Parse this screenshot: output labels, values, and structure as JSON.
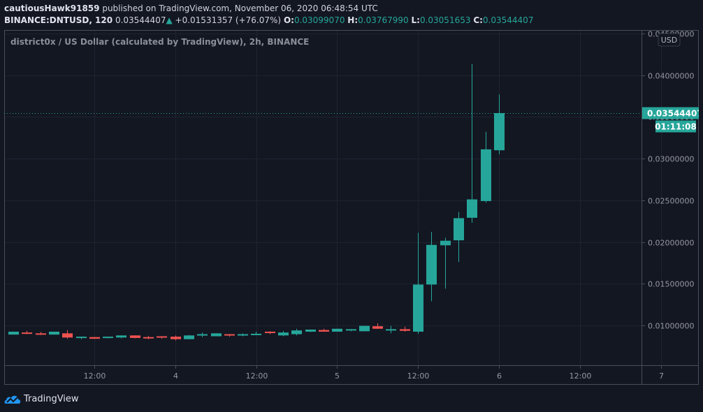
{
  "header": {
    "author": "cautiousHawk91859",
    "published_text": "published on TradingView.com, November 06, 2020 06:48:54 UTC",
    "symbol": "BINANCE:DNTUSD, 120",
    "last_price": "0.03544407",
    "change_arrow": "▲",
    "change": "+0.01531357 (+76.07%)",
    "o_label": "O:",
    "o_value": "0.03099070",
    "h_label": "H:",
    "h_value": "0.03767990",
    "l_label": "L:",
    "l_value": "0.03051653",
    "c_label": "C:",
    "c_value": "0.03544407"
  },
  "chart": {
    "legend": "district0x / US Dollar (calculated by TradingView), 2h, BINANCE",
    "currency_button": "USD",
    "price_label": "0.03544407",
    "countdown_label": "01:11:08",
    "up_color": "#26a69a",
    "down_color": "#ef5350"
  },
  "footer": {
    "brand": "TradingView"
  },
  "chart_data": {
    "type": "candlestick",
    "title": "district0x / US Dollar (calculated by TradingView), 2h, BINANCE",
    "xlabel": "",
    "ylabel": "USD",
    "ylim": [
      0.0052,
      0.0455
    ],
    "grid": true,
    "y_ticks": [
      "0.01000000",
      "0.01500000",
      "0.02000000",
      "0.02500000",
      "0.03000000",
      "0.03500000",
      "0.04000000",
      "0.04500000"
    ],
    "y_tick_values": [
      0.01,
      0.015,
      0.02,
      0.025,
      0.03,
      0.035,
      0.04,
      0.045
    ],
    "x_ticks": [
      "12:00",
      "4",
      "12:00",
      "5",
      "12:00",
      "6",
      "12:00",
      "7"
    ],
    "x_tick_index": [
      3,
      9,
      15,
      21,
      27,
      33,
      39,
      45
    ],
    "candles": [
      {
        "o": 0.0089,
        "h": 0.00925,
        "l": 0.0089,
        "c": 0.00925
      },
      {
        "o": 0.00915,
        "h": 0.00935,
        "l": 0.00895,
        "c": 0.0091
      },
      {
        "o": 0.00905,
        "h": 0.0092,
        "l": 0.00885,
        "c": 0.00895
      },
      {
        "o": 0.0089,
        "h": 0.00925,
        "l": 0.0089,
        "c": 0.00925
      },
      {
        "o": 0.00905,
        "h": 0.00945,
        "l": 0.0084,
        "c": 0.00855
      },
      {
        "o": 0.0086,
        "h": 0.00865,
        "l": 0.00835,
        "c": 0.00865
      },
      {
        "o": 0.0086,
        "h": 0.0086,
        "l": 0.0084,
        "c": 0.0084
      },
      {
        "o": 0.0086,
        "h": 0.00865,
        "l": 0.00845,
        "c": 0.00865
      },
      {
        "o": 0.00855,
        "h": 0.0088,
        "l": 0.00845,
        "c": 0.0088
      },
      {
        "o": 0.0088,
        "h": 0.0088,
        "l": 0.00845,
        "c": 0.0085
      },
      {
        "o": 0.0086,
        "h": 0.00875,
        "l": 0.00835,
        "c": 0.00845
      },
      {
        "o": 0.0087,
        "h": 0.0087,
        "l": 0.0084,
        "c": 0.00855
      },
      {
        "o": 0.00865,
        "h": 0.0088,
        "l": 0.0082,
        "c": 0.00835
      },
      {
        "o": 0.00835,
        "h": 0.00885,
        "l": 0.00835,
        "c": 0.0088
      },
      {
        "o": 0.0088,
        "h": 0.00915,
        "l": 0.0086,
        "c": 0.00895
      },
      {
        "o": 0.0087,
        "h": 0.00905,
        "l": 0.0087,
        "c": 0.00905
      },
      {
        "o": 0.00895,
        "h": 0.00895,
        "l": 0.00865,
        "c": 0.0088
      },
      {
        "o": 0.0088,
        "h": 0.00905,
        "l": 0.0087,
        "c": 0.00895
      },
      {
        "o": 0.00895,
        "h": 0.00925,
        "l": 0.00895,
        "c": 0.009
      },
      {
        "o": 0.00925,
        "h": 0.0093,
        "l": 0.00895,
        "c": 0.0091
      },
      {
        "o": 0.0088,
        "h": 0.00935,
        "l": 0.0087,
        "c": 0.00915
      },
      {
        "o": 0.00895,
        "h": 0.0096,
        "l": 0.0088,
        "c": 0.0094
      },
      {
        "o": 0.00925,
        "h": 0.0095,
        "l": 0.0092,
        "c": 0.0095
      },
      {
        "o": 0.00945,
        "h": 0.0096,
        "l": 0.0093,
        "c": 0.00925
      },
      {
        "o": 0.00925,
        "h": 0.0096,
        "l": 0.00925,
        "c": 0.0096
      },
      {
        "o": 0.00945,
        "h": 0.00955,
        "l": 0.0093,
        "c": 0.00955
      },
      {
        "o": 0.0093,
        "h": 0.00995,
        "l": 0.0093,
        "c": 0.00995
      },
      {
        "o": 0.0099,
        "h": 0.01025,
        "l": 0.0096,
        "c": 0.0096
      },
      {
        "o": 0.00955,
        "h": 0.00995,
        "l": 0.00905,
        "c": 0.00955
      },
      {
        "o": 0.00955,
        "h": 0.00985,
        "l": 0.00925,
        "c": 0.00935
      },
      {
        "o": 0.00925,
        "h": 0.0211,
        "l": 0.009,
        "c": 0.0149
      },
      {
        "o": 0.0149,
        "h": 0.0212,
        "l": 0.0129,
        "c": 0.01965
      },
      {
        "o": 0.0196,
        "h": 0.0205,
        "l": 0.0144,
        "c": 0.02015
      },
      {
        "o": 0.0202,
        "h": 0.0236,
        "l": 0.0176,
        "c": 0.02285
      },
      {
        "o": 0.0229,
        "h": 0.0413,
        "l": 0.0223,
        "c": 0.0251
      },
      {
        "o": 0.0249,
        "h": 0.0332,
        "l": 0.0247,
        "c": 0.0311
      },
      {
        "o": 0.0309907,
        "h": 0.0376799,
        "l": 0.03051653,
        "c": 0.03544407
      }
    ]
  }
}
